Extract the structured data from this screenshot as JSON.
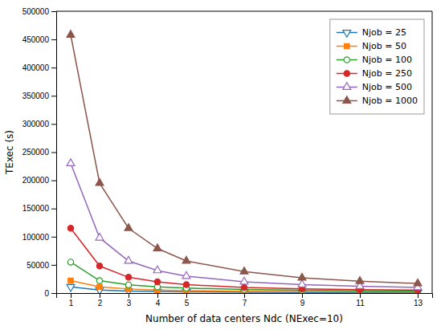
{
  "chart_data": {
    "type": "line",
    "x": [
      1,
      2,
      3,
      4,
      5,
      7,
      9,
      11,
      13
    ],
    "series": [
      {
        "name": "Njob = 25",
        "values": [
          11000,
          5500,
          3700,
          2750,
          2200,
          1570,
          1220,
          1000,
          850
        ],
        "marker": "triangle-down-open"
      },
      {
        "name": "Njob = 50",
        "values": [
          22000,
          11000,
          7300,
          5500,
          4400,
          3140,
          2440,
          2000,
          1700
        ],
        "marker": "square"
      },
      {
        "name": "Njob = 100",
        "values": [
          55000,
          22000,
          14600,
          11000,
          8800,
          6300,
          4900,
          4000,
          3400
        ],
        "marker": "circle-open"
      },
      {
        "name": "Njob = 250",
        "values": [
          115000,
          48000,
          28000,
          20000,
          15000,
          10000,
          7500,
          6200,
          5200
        ],
        "marker": "circle"
      },
      {
        "name": "Njob = 500",
        "values": [
          230000,
          98000,
          57000,
          40000,
          30000,
          20000,
          15000,
          12000,
          10000
        ],
        "marker": "triangle-up-open"
      },
      {
        "name": "Njob = 1000",
        "values": [
          458000,
          195000,
          115000,
          79000,
          57000,
          38000,
          27000,
          21000,
          17000
        ],
        "marker": "triangle-up"
      }
    ],
    "xlabel": "Number of data centers Ndc (NExec=10)",
    "ylabel": "TExec (s)",
    "xlim": [
      0.5,
      13.5
    ],
    "xticks": [
      1,
      2,
      3,
      4,
      5,
      7,
      9,
      11,
      13
    ],
    "ylim": [
      0,
      500000
    ],
    "yticks": [
      0,
      50000,
      100000,
      150000,
      200000,
      250000,
      300000,
      350000,
      400000,
      450000,
      500000
    ],
    "grid": false,
    "legend": "upper right"
  }
}
